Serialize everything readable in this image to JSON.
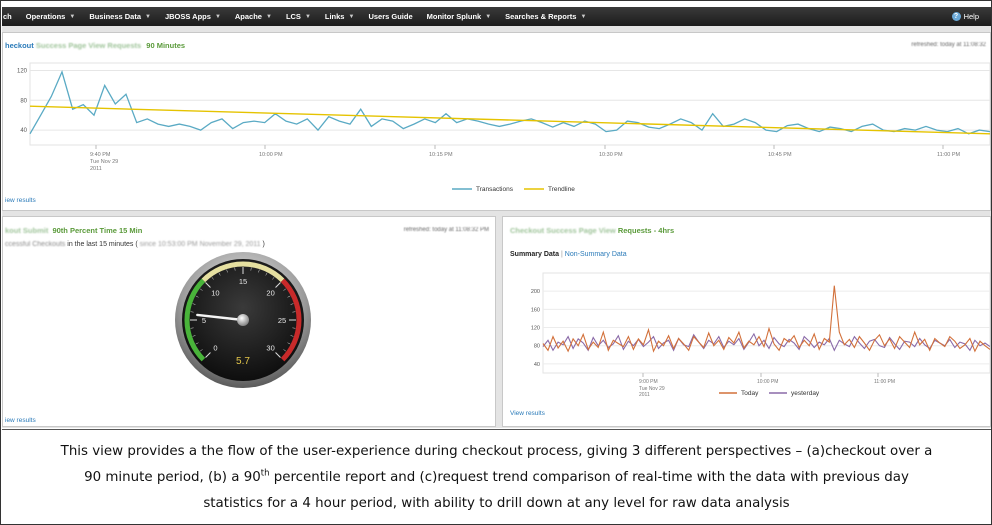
{
  "nav": {
    "items": [
      {
        "label": "ch",
        "caret": false
      },
      {
        "label": "Operations",
        "caret": true
      },
      {
        "label": "Business Data",
        "caret": true
      },
      {
        "label": "JBOSS Apps",
        "caret": true
      },
      {
        "label": "Apache",
        "caret": true
      },
      {
        "label": "LCS",
        "caret": true
      },
      {
        "label": "Links",
        "caret": true
      },
      {
        "label": "Users Guide",
        "caret": false
      },
      {
        "label": "Monitor Splunk",
        "caret": true
      },
      {
        "label": "Searches & Reports",
        "caret": true
      }
    ],
    "help": "Help",
    "help_icon": "help-icon"
  },
  "panel1": {
    "title_blur": "heckout",
    "title_blur2": "Success Page View Requests",
    "title_minutes": "90 Minutes",
    "refreshed": "refreshed: today at 11:08:32",
    "view_results": "iew results",
    "legend": [
      "Transactions",
      "Trendline"
    ],
    "colors": {
      "transactions": "#5aaac4",
      "trendline": "#e5c300"
    }
  },
  "panel2": {
    "title_blur": "kout Submit",
    "title_rest": "90th Percent Time 15 Min",
    "refreshed": "refreshed: today at 11:08:32 PM",
    "sub_blur": "ccessful Checkouts",
    "sub_rest": "in the last 15 minutes (",
    "sub_blur2": "since 10:53:00 PM November 29, 2011",
    "sub_end": ")",
    "view_results": "iew results",
    "gauge_value": "5.7",
    "gauge_numeric": 5.7,
    "gauge_ticks": [
      "0",
      "5",
      "10",
      "15",
      "20",
      "25",
      "30"
    ]
  },
  "panel3": {
    "title_blur": "Checkout Success Page View",
    "title_rest": "Requests - 4hrs",
    "tab_active": "Summary Data",
    "tab_sep": "|",
    "tab_other": "Non-Summary Data",
    "legend": [
      "Today",
      "yesterday"
    ],
    "colors": {
      "today": "#d2703a",
      "yesterday": "#8a6aa8"
    },
    "view_results": "View results"
  },
  "caption": {
    "line1": "This view provides a the flow of the user-experience during checkout process, giving 3 different perspectives – (a)checkout over a",
    "line2a": "90 minute period, (b) a 90",
    "line2sup": "th",
    "line2b": " percentile report and (c)request trend comparison of real-time with the data with previous day",
    "line3": "statistics for a 4 hour period, with ability to drill down at any level for raw data analysis"
  },
  "chart_data": [
    {
      "type": "line",
      "ylim": [
        20,
        130
      ],
      "yticks": [
        "120",
        "80",
        "40"
      ],
      "xticks": [
        {
          "label": "9:40 PM",
          "sub": [
            "Tue Nov 29",
            "2011"
          ]
        },
        {
          "label": "10:00 PM"
        },
        {
          "label": "10:15 PM"
        },
        {
          "label": "10:30 PM"
        },
        {
          "label": "10:45 PM"
        },
        {
          "label": "11:00 PM"
        }
      ],
      "series": [
        {
          "name": "Transactions",
          "values": [
            35,
            60,
            85,
            118,
            68,
            74,
            60,
            100,
            75,
            88,
            50,
            55,
            48,
            45,
            48,
            45,
            40,
            50,
            55,
            42,
            50,
            52,
            50,
            62,
            52,
            48,
            55,
            40,
            58,
            52,
            48,
            68,
            45,
            55,
            52,
            42,
            48,
            55,
            50,
            62,
            50,
            55,
            52,
            48,
            45,
            48,
            52,
            55,
            50,
            44,
            50,
            45,
            52,
            48,
            38,
            40,
            52,
            50,
            44,
            42,
            48,
            55,
            50,
            40,
            62,
            45,
            48,
            55,
            50,
            40,
            38,
            46,
            48,
            42,
            38,
            44,
            42,
            38,
            45,
            48,
            40,
            38,
            42,
            40,
            45,
            40,
            38,
            42,
            35,
            40,
            38
          ]
        },
        {
          "name": "Trendline",
          "values": [
            72,
            35
          ]
        }
      ]
    },
    {
      "type": "line",
      "ylim": [
        20,
        240
      ],
      "yticks": [
        "200",
        "160",
        "120",
        "80",
        "40"
      ],
      "xticks": [
        {
          "label": "9:00 PM",
          "sub": [
            "Tue Nov 29",
            "2011"
          ]
        },
        {
          "label": "10:00 PM"
        },
        {
          "label": "11:00 PM"
        }
      ],
      "series": [
        {
          "name": "Today",
          "values": [
            85,
            70,
            100,
            75,
            90,
            68,
            95,
            80,
            105,
            72,
            88,
            76,
            110,
            70,
            92,
            85,
            78,
            100,
            72,
            95,
            82,
            115,
            68,
            90,
            80,
            102,
            74,
            96,
            84,
            70,
            100,
            88,
            76,
            108,
            80,
            92,
            72,
            98,
            86,
            110,
            75,
            90,
            82,
            100,
            78,
            118,
            84,
            70,
            96,
            88,
            102,
            76,
            92,
            80,
            106,
            72,
            96,
            88,
            212,
            110,
            82,
            94,
            76,
            100,
            86,
            70,
            92,
            104,
            80,
            95,
            74,
            100,
            88,
            76,
            110,
            82,
            94,
            70,
            96,
            86,
            78,
            100,
            90,
            74,
            82,
            96,
            68,
            90,
            80,
            72
          ]
        },
        {
          "name": "yesterday",
          "values": [
            78,
            92,
            70,
            88,
            82,
            100,
            74,
            95,
            86,
            70,
            98,
            80,
            92,
            76,
            84,
            102,
            72,
            90,
            80,
            94,
            78,
            88,
            100,
            74,
            86,
            92,
            70,
            96,
            82,
            78,
            104,
            88,
            74,
            92,
            84,
            100,
            76,
            90,
            82,
            96,
            72,
            88,
            106,
            80,
            92,
            74,
            98,
            84,
            78,
            94,
            86,
            72,
            100,
            90,
            76,
            88,
            82,
            96,
            70,
            92,
            84,
            78,
            100,
            86,
            74,
            90,
            94,
            80,
            76,
            98,
            84,
            72,
            90,
            88,
            78,
            96,
            82,
            74,
            92,
            86,
            80,
            94,
            76,
            88,
            84,
            70,
            92,
            80,
            86,
            78
          ]
        }
      ]
    }
  ]
}
